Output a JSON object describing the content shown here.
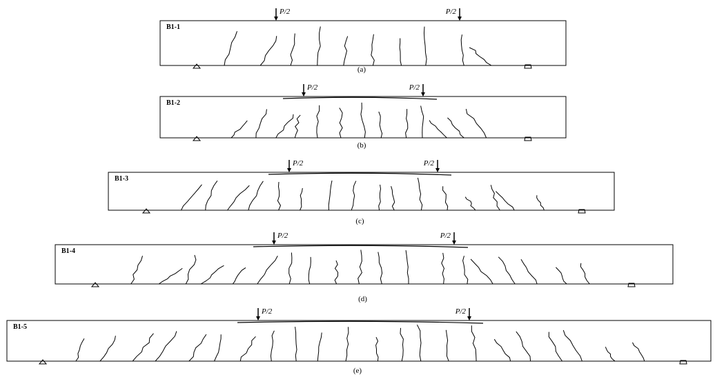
{
  "beams": [
    {
      "label": "B1-1",
      "loads": [
        "P/2",
        "P/2"
      ],
      "caption": "(a)"
    },
    {
      "label": "B1-2",
      "loads": [
        "P/2",
        "P/2"
      ],
      "caption": "(b)"
    },
    {
      "label": "B1-3",
      "loads": [
        "P/2",
        "P/2"
      ],
      "caption": "(c)"
    },
    {
      "label": "B1-4",
      "loads": [
        "P/2",
        "P/2"
      ],
      "caption": "(d)"
    },
    {
      "label": "B1-5",
      "loads": [
        "P/2",
        "P/2"
      ],
      "caption": "(e)"
    }
  ]
}
